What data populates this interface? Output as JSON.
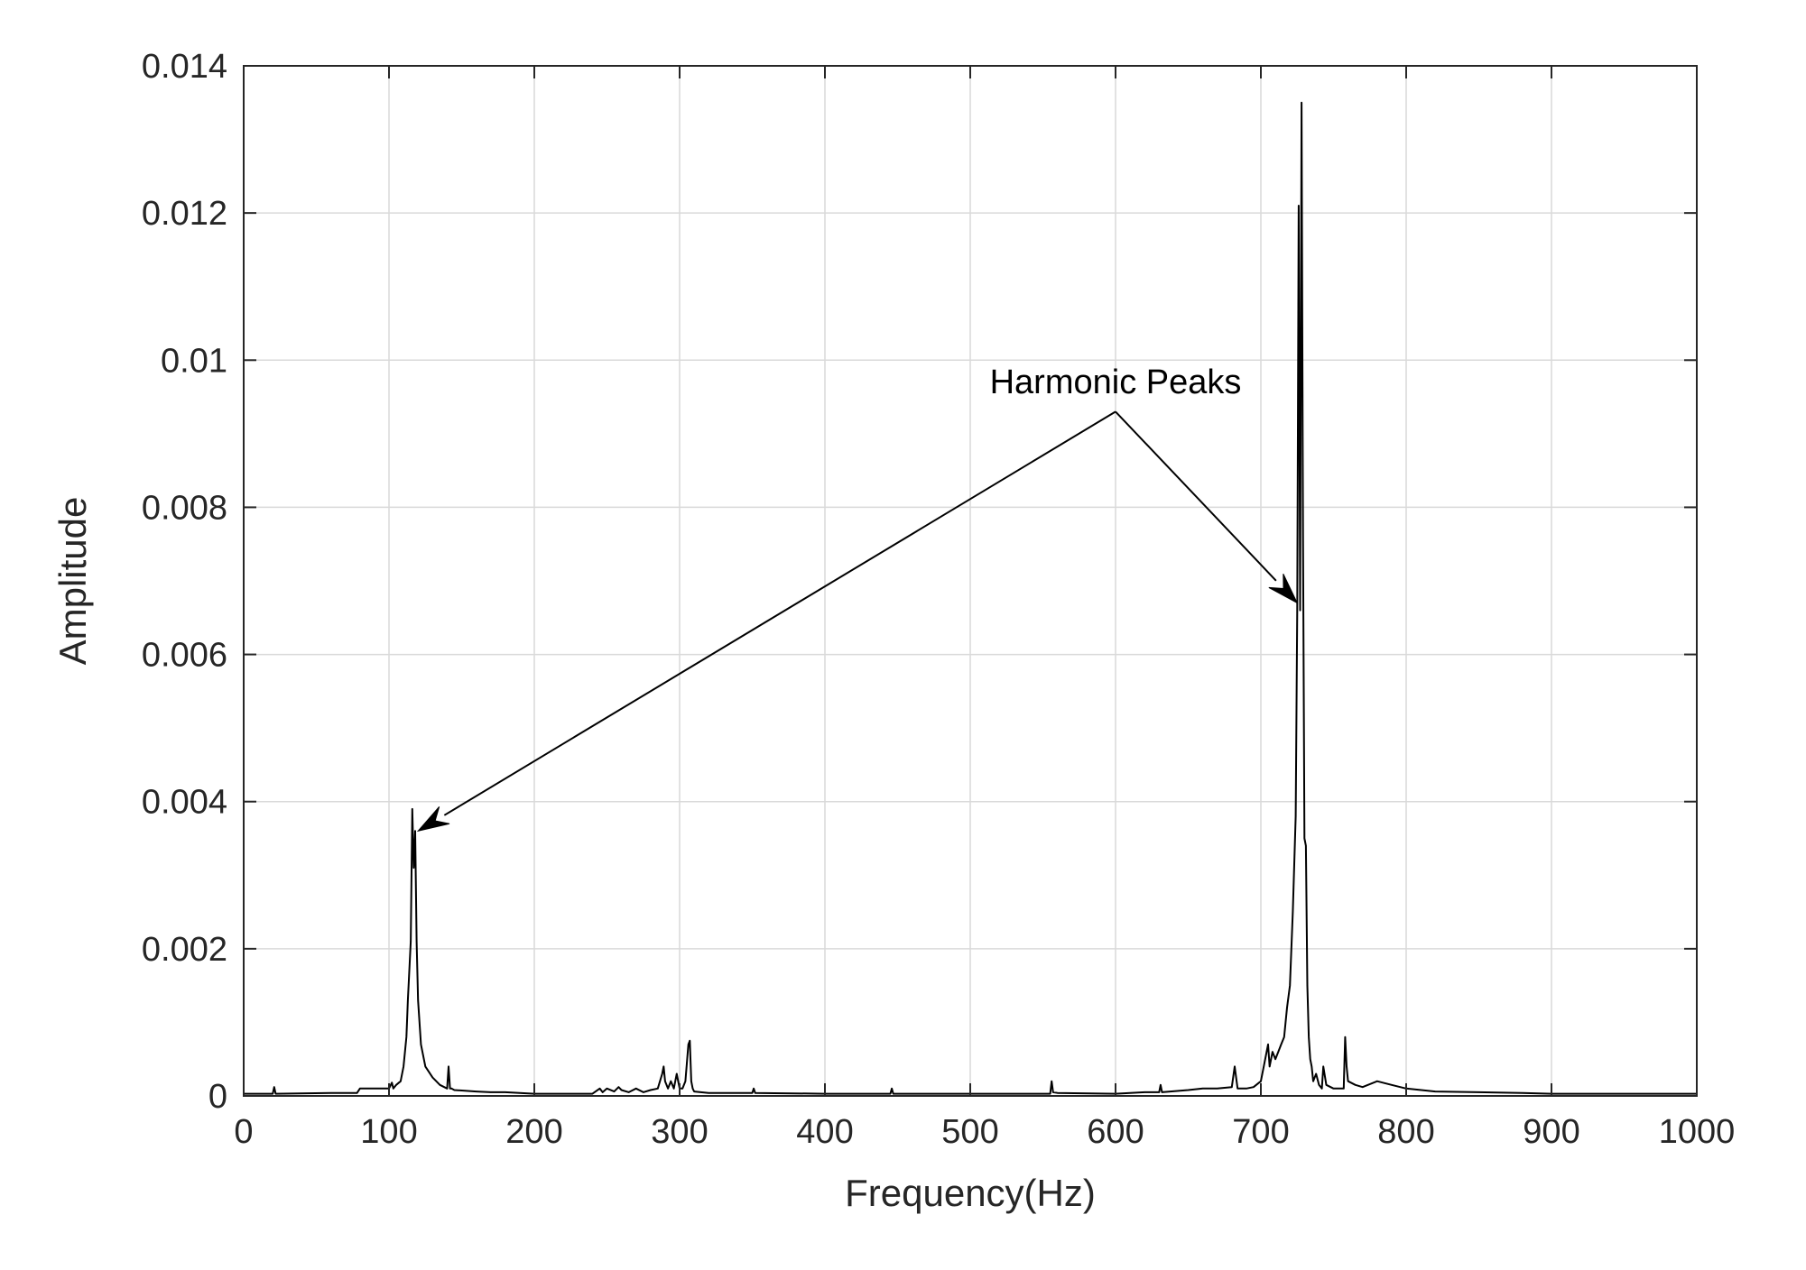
{
  "chart_data": {
    "type": "line",
    "title": "",
    "xlabel": "Frequency(Hz)",
    "ylabel": "Amplitude",
    "xlim": [
      0,
      1000
    ],
    "ylim": [
      0,
      0.014
    ],
    "xticks": [
      0,
      100,
      200,
      300,
      400,
      500,
      600,
      700,
      800,
      900,
      1000
    ],
    "xtick_labels": [
      "0",
      "100",
      "200",
      "300",
      "400",
      "500",
      "600",
      "700",
      "800",
      "900",
      "1000"
    ],
    "yticks": [
      0,
      0.002,
      0.004,
      0.006,
      0.008,
      0.01,
      0.012,
      0.014
    ],
    "ytick_labels": [
      "0",
      "0.002",
      "0.004",
      "0.006",
      "0.008",
      "0.01",
      "0.012",
      "0.014"
    ],
    "grid": true,
    "legend": "none",
    "line_color": "#000000",
    "series": [
      {
        "x": [
          0,
          20,
          21,
          22,
          60,
          78,
          80,
          100,
          102,
          103,
          105,
          108,
          110,
          112,
          113,
          115,
          116,
          117,
          118,
          119,
          120,
          122,
          125,
          130,
          135,
          140,
          141,
          142,
          143,
          145,
          160,
          170,
          180,
          190,
          200,
          240,
          245,
          247,
          250,
          255,
          258,
          260,
          265,
          270,
          275,
          280,
          285,
          288,
          289,
          290,
          292,
          294,
          296,
          298,
          300,
          302,
          304,
          306,
          307,
          308,
          309,
          310,
          320,
          350,
          351,
          352,
          400,
          445,
          446,
          447,
          500,
          555,
          556,
          557,
          560,
          600,
          620,
          630,
          631,
          632,
          650,
          660,
          670,
          680,
          682,
          683,
          684,
          686,
          690,
          695,
          700,
          702,
          704,
          705,
          706,
          708,
          710,
          712,
          714,
          716,
          718,
          720,
          722,
          724,
          725,
          726,
          727,
          728,
          729,
          730,
          731,
          732,
          733,
          734,
          735,
          736,
          738,
          740,
          742,
          743,
          745,
          750,
          757,
          758,
          759,
          760,
          765,
          770,
          780,
          790,
          800,
          820,
          850,
          880,
          900,
          950,
          1000
        ],
        "y": [
          3e-05,
          3e-05,
          0.00012,
          3e-05,
          4e-05,
          4e-05,
          0.0001,
          0.0001,
          0.00018,
          0.0001,
          0.00015,
          0.0002,
          0.0004,
          0.0008,
          0.0013,
          0.0021,
          0.0039,
          0.0031,
          0.0036,
          0.0021,
          0.0013,
          0.0007,
          0.0004,
          0.00025,
          0.00015,
          0.0001,
          0.0004,
          0.0001,
          0.0001,
          8e-05,
          6e-05,
          5e-05,
          5e-05,
          4e-05,
          3e-05,
          3e-05,
          0.0001,
          5e-05,
          0.0001,
          6e-05,
          0.00012,
          8e-05,
          5e-05,
          0.0001,
          5e-05,
          8e-05,
          0.0001,
          0.0003,
          0.0004,
          0.0002,
          0.0001,
          0.0002,
          0.0001,
          0.0003,
          0.0001,
          0.0001,
          0.0002,
          0.0007,
          0.00075,
          0.0002,
          0.0001,
          6e-05,
          4e-05,
          4e-05,
          0.0001,
          4e-05,
          3e-05,
          3e-05,
          0.0001,
          3e-05,
          3e-05,
          3e-05,
          0.0002,
          5e-05,
          4e-05,
          3e-05,
          5e-05,
          5e-05,
          0.00015,
          5e-05,
          8e-05,
          0.0001,
          0.0001,
          0.00012,
          0.0004,
          0.00025,
          0.0001,
          0.0001,
          0.0001,
          0.00012,
          0.0002,
          0.0004,
          0.0006,
          0.0007,
          0.0004,
          0.0006,
          0.0005,
          0.0006,
          0.0007,
          0.0008,
          0.0012,
          0.0015,
          0.0025,
          0.0038,
          0.0066,
          0.0121,
          0.0066,
          0.0135,
          0.0076,
          0.0035,
          0.0034,
          0.0015,
          0.0008,
          0.0005,
          0.0004,
          0.0002,
          0.0003,
          0.00015,
          0.0001,
          0.0004,
          0.00015,
          0.0001,
          0.0001,
          0.0008,
          0.0004,
          0.0002,
          0.00015,
          0.00012,
          0.0002,
          0.00015,
          0.0001,
          6e-05,
          5e-05,
          4e-05,
          3e-05,
          3e-05,
          3e-05
        ]
      }
    ],
    "annotations": [
      {
        "text": "Harmonic Peaks",
        "text_at": [
          600,
          0.00955
        ],
        "arrow_tail": [
          600,
          0.0093
        ],
        "arrow_targets": [
          [
            120,
            0.0036
          ],
          [
            725,
            0.0067
          ]
        ]
      }
    ]
  }
}
